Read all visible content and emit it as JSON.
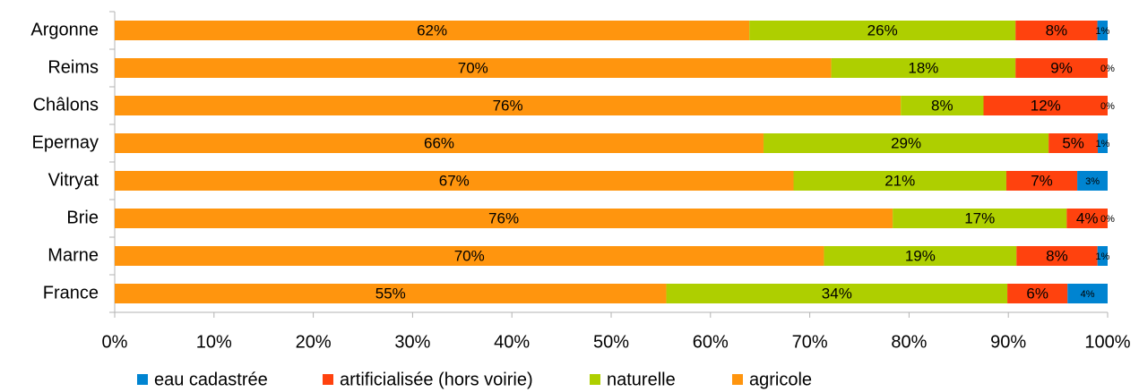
{
  "chart_data": {
    "type": "bar",
    "orientation": "horizontal",
    "stacked": "percent",
    "categories": [
      "Argonne",
      "Reims",
      "Châlons",
      "Epernay",
      "Vitryat",
      "Brie",
      "Marne",
      "France"
    ],
    "series": [
      {
        "name": "eau cadastrée",
        "color": "#0084d1",
        "values": [
          1,
          0,
          0,
          1,
          3,
          0,
          1,
          4
        ],
        "value_labels": [
          "1%",
          "0%",
          "0%",
          "1%",
          "3%",
          "0%",
          "1%",
          "4%"
        ]
      },
      {
        "name": "artificialisée (hors voirie)",
        "color": "#ff420e",
        "values": [
          8,
          9,
          12,
          5,
          7,
          4,
          8,
          6
        ],
        "value_labels": [
          "8%",
          "9%",
          "12%",
          "5%",
          "7%",
          "4%",
          "8%",
          "6%"
        ]
      },
      {
        "name": "naturelle",
        "color": "#aecf00",
        "values": [
          26,
          18,
          8,
          29,
          21,
          17,
          19,
          34
        ],
        "value_labels": [
          "26%",
          "18%",
          "8%",
          "29%",
          "21%",
          "17%",
          "19%",
          "34%"
        ]
      },
      {
        "name": "agricole",
        "color": "#ff950e",
        "values": [
          62,
          70,
          76,
          66,
          67,
          76,
          70,
          55
        ],
        "value_labels": [
          "62%",
          "70%",
          "76%",
          "66%",
          "67%",
          "76%",
          "70%",
          "55%"
        ]
      }
    ],
    "xlim": [
      0,
      100
    ],
    "xticks": [
      {
        "value": 0,
        "label": "0%"
      },
      {
        "value": 10,
        "label": "10%"
      },
      {
        "value": 20,
        "label": "20%"
      },
      {
        "value": 30,
        "label": "30%"
      },
      {
        "value": 40,
        "label": "40%"
      },
      {
        "value": 50,
        "label": "50%"
      },
      {
        "value": 60,
        "label": "60%"
      },
      {
        "value": 70,
        "label": "70%"
      },
      {
        "value": 80,
        "label": "80%"
      },
      {
        "value": 90,
        "label": "90%"
      },
      {
        "value": 100,
        "label": "100%"
      }
    ],
    "legend": "bottom"
  }
}
